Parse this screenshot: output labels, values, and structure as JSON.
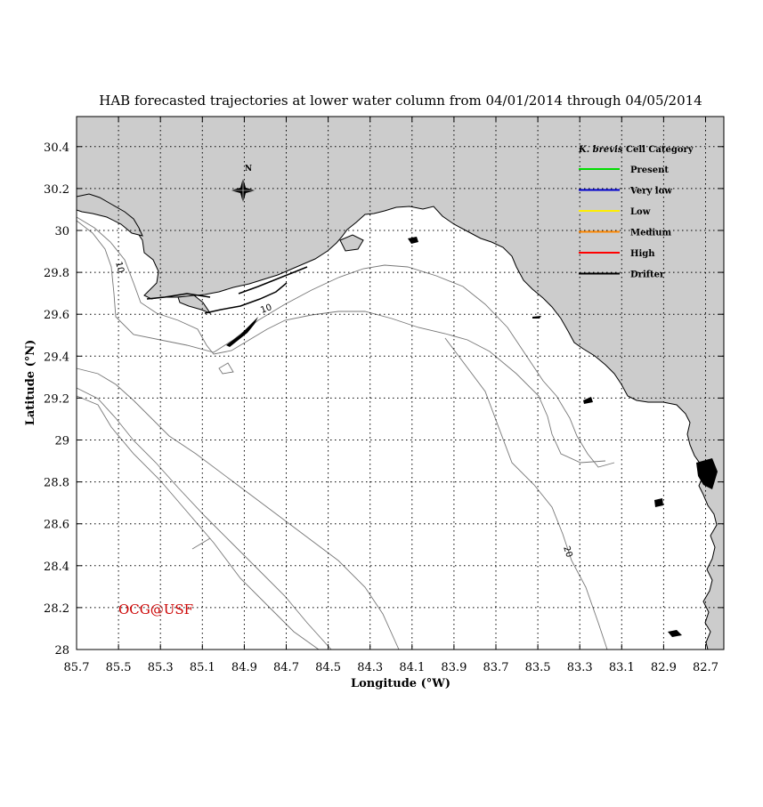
{
  "title": "HAB forecasted trajectories at lower water column from 04/01/2014 through 04/05/2014",
  "x_axis": {
    "label": "Longitude (°W)",
    "ticks": [
      "85.7",
      "85.5",
      "85.3",
      "85.1",
      "84.9",
      "84.7",
      "84.5",
      "84.3",
      "84.1",
      "83.9",
      "83.7",
      "83.5",
      "83.3",
      "83.1",
      "82.9",
      "82.7"
    ]
  },
  "y_axis": {
    "label": "Latitude (°N)",
    "ticks": [
      "28",
      "28.2",
      "28.4",
      "28.6",
      "28.8",
      "29",
      "29.2",
      "29.4",
      "29.6",
      "29.8",
      "30",
      "30.2",
      "30.4"
    ]
  },
  "compass": {
    "label": "N"
  },
  "legend": {
    "title_species": "K. brevis",
    "title_rest": " Cell Category",
    "items": [
      {
        "label": "Present",
        "color": "#00dd00"
      },
      {
        "label": "Very low",
        "color": "#0000cc"
      },
      {
        "label": "Low",
        "color": "#ffee00"
      },
      {
        "label": "Medium",
        "color": "#ff8800"
      },
      {
        "label": "High",
        "color": "#ff0000"
      },
      {
        "label": "Drifter",
        "color": "#000000"
      }
    ]
  },
  "contours": [
    {
      "label": "10"
    },
    {
      "label": "10"
    },
    {
      "label": "20"
    }
  ],
  "watermark": "OCG@USF",
  "colors": {
    "land": "#cccccc",
    "water": "#ffffff",
    "grid": "#000000",
    "contour": "#777777"
  }
}
